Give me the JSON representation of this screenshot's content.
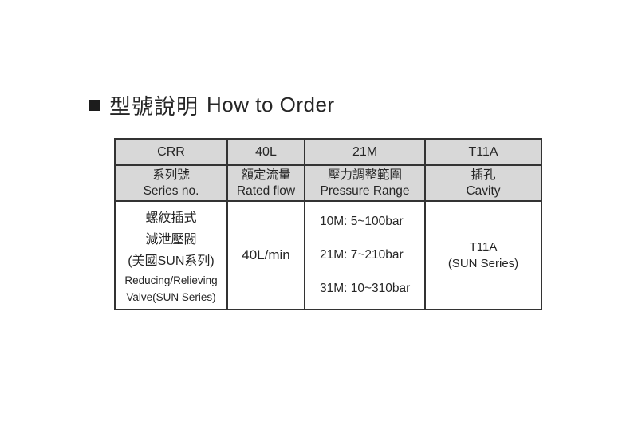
{
  "title": {
    "zh": "型號說明",
    "en": "How to Order"
  },
  "colors": {
    "page_bg": "#ffffff",
    "header_bg": "#d8d8d8",
    "border": "#333333",
    "text": "#262626",
    "bullet": "#1c1c1c"
  },
  "table": {
    "codes": [
      "CRR",
      "40L",
      "21M",
      "T11A"
    ],
    "headers": [
      {
        "zh": "系列號",
        "en": "Series no."
      },
      {
        "zh": "額定流量",
        "en": "Rated flow"
      },
      {
        "zh": "壓力調整範圍",
        "en": "Pressure Range"
      },
      {
        "zh": "插孔",
        "en": "Cavity"
      }
    ],
    "body": {
      "product": {
        "zh_lines": [
          "螺紋插式",
          "減泄壓閥",
          "(美國SUN系列)"
        ],
        "en_lines": [
          "Reducing/Relieving",
          "Valve(SUN Series)"
        ]
      },
      "rated_flow": "40L/min",
      "pressure_lines": [
        "10M: 5~100bar",
        "21M: 7~210bar",
        "31M: 10~310bar"
      ],
      "cavity_lines": [
        "T11A",
        "(SUN Series)"
      ]
    }
  }
}
